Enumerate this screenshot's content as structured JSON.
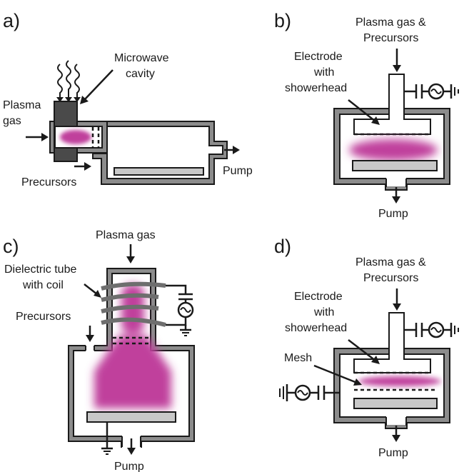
{
  "panels": {
    "a": {
      "letter": "a)",
      "microwave_cavity_line1": "Microwave",
      "microwave_cavity_line2": "cavity",
      "plasma_gas_line1": "Plasma",
      "plasma_gas_line2": "gas",
      "precursors": "Precursors",
      "pump": "Pump"
    },
    "b": {
      "letter": "b)",
      "feed_line1": "Plasma gas &",
      "feed_line2": "Precursors",
      "electrode_line1": "Electrode",
      "electrode_line2": "with",
      "electrode_line3": "showerhead",
      "pump": "Pump"
    },
    "c": {
      "letter": "c)",
      "plasma_gas": "Plasma gas",
      "dielectric_line1": "Dielectric tube",
      "dielectric_line2": "with coil",
      "precursors": "Precursors",
      "pump": "Pump"
    },
    "d": {
      "letter": "d)",
      "feed_line1": "Plasma gas &",
      "feed_line2": "Precursors",
      "electrode_line1": "Electrode",
      "electrode_line2": "with",
      "electrode_line3": "showerhead",
      "mesh": "Mesh",
      "pump": "Pump"
    }
  },
  "colors": {
    "plasma": "#c0409c",
    "wall": "#8c8c8c",
    "plate": "#c8c8c8",
    "cavity": "#4a4a4a"
  }
}
